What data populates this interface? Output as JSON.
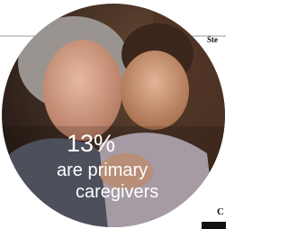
{
  "stat": "13%",
  "caption_lines": [
    "are primary",
    "caregivers"
  ],
  "edge_text_top": "Ste",
  "edge_text_bottom": "C"
}
